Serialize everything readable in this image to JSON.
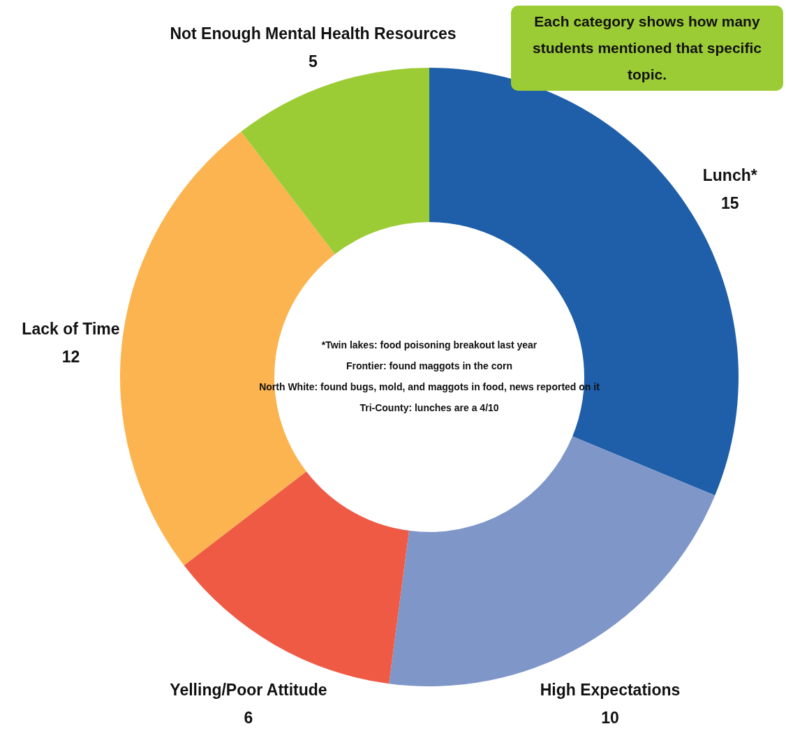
{
  "chart_data": {
    "type": "donut",
    "categories": [
      "Lunch*",
      "High Expectations",
      "Yelling/Poor Attitude",
      "Lack of Time",
      "Not Enough Mental Health Resources"
    ],
    "values": [
      15,
      10,
      6,
      12,
      5
    ],
    "colors": [
      "#1f5ea8",
      "#7f96c8",
      "#ef5a45",
      "#fbb44f",
      "#9ccc35"
    ],
    "data_labels": true,
    "annotations": [
      "Each category shows how many students mentioned that specific topic.",
      "*Twin lakes: food poisoning breakout last year",
      "Frontier: found maggots in the corn",
      "North White: found bugs, mold, and maggots in food, news reported on it",
      "Tri-County: lunches are a 4/10"
    ]
  }
}
